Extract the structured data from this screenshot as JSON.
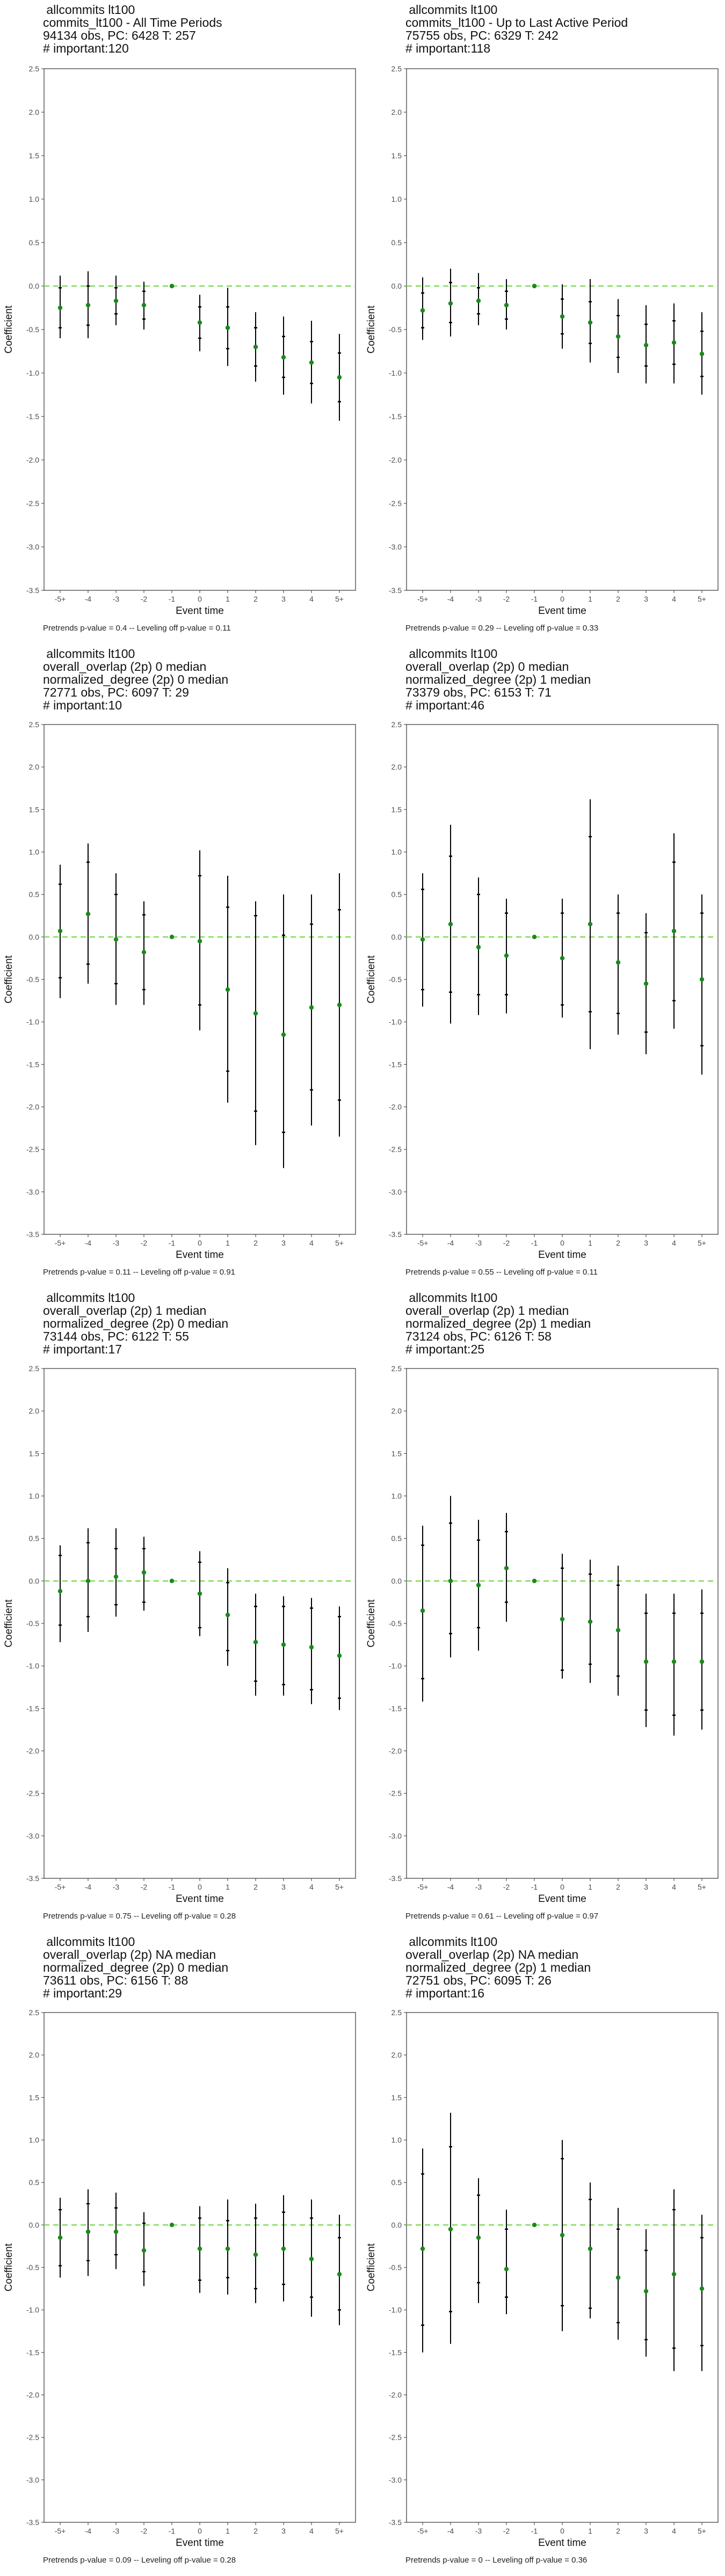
{
  "colors": {
    "dashed_zero": "#7fdc5a",
    "point": "#1a8a1a",
    "ci": "#000000",
    "text": "#333333"
  },
  "chart_data": [
    {
      "type": "scatter",
      "title_lines": [
        "allcommits lt100",
        "commits_lt100 - All Time Periods",
        "94134 obs, PC: 6428 T: 257",
        "# important:120"
      ],
      "xlabel": "Event time",
      "ylabel": "Coefficient",
      "categories": [
        "-5+",
        "-4",
        "-3",
        "-2",
        "-1",
        "0",
        "1",
        "2",
        "3",
        "4",
        "5+"
      ],
      "ylim": [
        -3.5,
        2.5
      ],
      "yticks": [
        "-3.5",
        "-3.0",
        "-2.5",
        "-2.0",
        "-1.5",
        "-1.0",
        "-0.5",
        "0.0",
        "0.5",
        "1.0",
        "1.5",
        "2.0",
        "2.5"
      ],
      "values": [
        -0.25,
        -0.22,
        -0.17,
        -0.22,
        0.0,
        -0.42,
        -0.48,
        -0.7,
        -0.82,
        -0.88,
        -1.05
      ],
      "ci_outer": [
        [
          -0.6,
          0.12
        ],
        [
          -0.6,
          0.17
        ],
        [
          -0.45,
          0.12
        ],
        [
          -0.5,
          0.05
        ],
        [
          0,
          0
        ],
        [
          -0.75,
          -0.1
        ],
        [
          -0.92,
          -0.02
        ],
        [
          -1.1,
          -0.3
        ],
        [
          -1.25,
          -0.35
        ],
        [
          -1.35,
          -0.4
        ],
        [
          -1.55,
          -0.55
        ]
      ],
      "ci_inner": [
        [
          -0.48,
          -0.02
        ],
        [
          -0.45,
          0.0
        ],
        [
          -0.32,
          -0.02
        ],
        [
          -0.38,
          -0.06
        ],
        [
          0,
          0
        ],
        [
          -0.6,
          -0.24
        ],
        [
          -0.72,
          -0.24
        ],
        [
          -0.92,
          -0.48
        ],
        [
          -1.05,
          -0.58
        ],
        [
          -1.12,
          -0.64
        ],
        [
          -1.33,
          -0.77
        ]
      ],
      "grid": false,
      "note": "Pretrends p-value = 0.4 -- Leveling off p-value = 0.11"
    },
    {
      "type": "scatter",
      "title_lines": [
        "allcommits lt100",
        "commits_lt100 - Up to Last Active Period",
        "75755 obs, PC: 6329 T: 242",
        "# important:118"
      ],
      "xlabel": "Event time",
      "ylabel": "Coefficient",
      "categories": [
        "-5+",
        "-4",
        "-3",
        "-2",
        "-1",
        "0",
        "1",
        "2",
        "3",
        "4",
        "5+"
      ],
      "ylim": [
        -3.5,
        2.5
      ],
      "yticks": [
        "-3.5",
        "-3.0",
        "-2.5",
        "-2.0",
        "-1.5",
        "-1.0",
        "-0.5",
        "0.0",
        "0.5",
        "1.0",
        "1.5",
        "2.0",
        "2.5"
      ],
      "values": [
        -0.28,
        -0.2,
        -0.17,
        -0.22,
        0.0,
        -0.35,
        -0.42,
        -0.58,
        -0.68,
        -0.65,
        -0.78
      ],
      "ci_outer": [
        [
          -0.62,
          0.1
        ],
        [
          -0.58,
          0.2
        ],
        [
          -0.45,
          0.15
        ],
        [
          -0.5,
          0.08
        ],
        [
          0,
          0
        ],
        [
          -0.72,
          0.02
        ],
        [
          -0.88,
          0.08
        ],
        [
          -1.0,
          -0.15
        ],
        [
          -1.12,
          -0.22
        ],
        [
          -1.12,
          -0.2
        ],
        [
          -1.25,
          -0.3
        ]
      ],
      "ci_inner": [
        [
          -0.48,
          -0.08
        ],
        [
          -0.42,
          0.04
        ],
        [
          -0.32,
          -0.02
        ],
        [
          -0.38,
          -0.06
        ],
        [
          0,
          0
        ],
        [
          -0.55,
          -0.15
        ],
        [
          -0.66,
          -0.18
        ],
        [
          -0.82,
          -0.34
        ],
        [
          -0.92,
          -0.44
        ],
        [
          -0.9,
          -0.4
        ],
        [
          -1.04,
          -0.52
        ]
      ],
      "grid": false,
      "note": "Pretrends p-value = 0.29 -- Leveling off p-value = 0.33"
    },
    {
      "type": "scatter",
      "title_lines": [
        "allcommits lt100",
        "overall_overlap (2p) 0 median",
        "normalized_degree (2p) 0 median",
        "72771 obs, PC: 6097 T: 29",
        "# important:10"
      ],
      "xlabel": "Event time",
      "ylabel": "Coefficient",
      "categories": [
        "-5+",
        "-4",
        "-3",
        "-2",
        "-1",
        "0",
        "1",
        "2",
        "3",
        "4",
        "5+"
      ],
      "ylim": [
        -3.5,
        2.5
      ],
      "yticks": [
        "-3.5",
        "-3.0",
        "-2.5",
        "-2.0",
        "-1.5",
        "-1.0",
        "-0.5",
        "0.0",
        "0.5",
        "1.0",
        "1.5",
        "2.0",
        "2.5"
      ],
      "values": [
        0.07,
        0.27,
        -0.03,
        -0.18,
        0.0,
        -0.05,
        -0.62,
        -0.9,
        -1.15,
        -0.83,
        -0.8
      ],
      "ci_outer": [
        [
          -0.72,
          0.85
        ],
        [
          -0.55,
          1.1
        ],
        [
          -0.8,
          0.75
        ],
        [
          -0.8,
          0.42
        ],
        [
          0,
          0
        ],
        [
          -1.1,
          1.02
        ],
        [
          -1.95,
          0.72
        ],
        [
          -2.45,
          0.42
        ],
        [
          -2.72,
          0.5
        ],
        [
          -2.22,
          0.5
        ],
        [
          -2.35,
          0.75
        ]
      ],
      "ci_inner": [
        [
          -0.48,
          0.62
        ],
        [
          -0.32,
          0.88
        ],
        [
          -0.55,
          0.5
        ],
        [
          -0.62,
          0.26
        ],
        [
          0,
          0
        ],
        [
          -0.8,
          0.72
        ],
        [
          -1.58,
          0.35
        ],
        [
          -2.05,
          0.25
        ],
        [
          -2.3,
          0.02
        ],
        [
          -1.8,
          0.15
        ],
        [
          -1.92,
          0.32
        ]
      ],
      "grid": false,
      "note": "Pretrends p-value = 0.11 -- Leveling off p-value = 0.91"
    },
    {
      "type": "scatter",
      "title_lines": [
        "allcommits lt100",
        "overall_overlap (2p) 0 median",
        "normalized_degree (2p) 1 median",
        "73379 obs, PC: 6153 T: 71",
        "# important:46"
      ],
      "xlabel": "Event time",
      "ylabel": "Coefficient",
      "categories": [
        "-5+",
        "-4",
        "-3",
        "-2",
        "-1",
        "0",
        "1",
        "2",
        "3",
        "4",
        "5+"
      ],
      "ylim": [
        -3.5,
        2.5
      ],
      "yticks": [
        "-3.5",
        "-3.0",
        "-2.5",
        "-2.0",
        "-1.5",
        "-1.0",
        "-0.5",
        "0.0",
        "0.5",
        "1.0",
        "1.5",
        "2.0",
        "2.5"
      ],
      "values": [
        -0.03,
        0.15,
        -0.12,
        -0.22,
        0.0,
        -0.25,
        0.15,
        -0.3,
        -0.55,
        0.07,
        -0.5
      ],
      "ci_outer": [
        [
          -0.82,
          0.75
        ],
        [
          -1.02,
          1.32
        ],
        [
          -0.92,
          0.7
        ],
        [
          -0.9,
          0.45
        ],
        [
          0,
          0
        ],
        [
          -0.95,
          0.45
        ],
        [
          -1.32,
          1.62
        ],
        [
          -1.15,
          0.5
        ],
        [
          -1.38,
          0.28
        ],
        [
          -1.08,
          1.22
        ],
        [
          -1.62,
          0.5
        ]
      ],
      "ci_inner": [
        [
          -0.62,
          0.56
        ],
        [
          -0.65,
          0.95
        ],
        [
          -0.68,
          0.5
        ],
        [
          -0.68,
          0.28
        ],
        [
          0,
          0
        ],
        [
          -0.8,
          0.28
        ],
        [
          -0.88,
          1.18
        ],
        [
          -0.9,
          0.28
        ],
        [
          -1.12,
          0.05
        ],
        [
          -0.75,
          0.88
        ],
        [
          -1.28,
          0.28
        ]
      ],
      "grid": false,
      "note": "Pretrends p-value = 0.55 -- Leveling off p-value = 0.11"
    },
    {
      "type": "scatter",
      "title_lines": [
        "allcommits lt100",
        "overall_overlap (2p) 1 median",
        "normalized_degree (2p) 0 median",
        "73144 obs, PC: 6122 T: 55",
        "# important:17"
      ],
      "xlabel": "Event time",
      "ylabel": "Coefficient",
      "categories": [
        "-5+",
        "-4",
        "-3",
        "-2",
        "-1",
        "0",
        "1",
        "2",
        "3",
        "4",
        "5+"
      ],
      "ylim": [
        -3.5,
        2.5
      ],
      "yticks": [
        "-3.5",
        "-3.0",
        "-2.5",
        "-2.0",
        "-1.5",
        "-1.0",
        "-0.5",
        "0.0",
        "0.5",
        "1.0",
        "1.5",
        "2.0",
        "2.5"
      ],
      "values": [
        -0.12,
        0.0,
        0.05,
        0.1,
        0.0,
        -0.15,
        -0.4,
        -0.72,
        -0.75,
        -0.78,
        -0.88
      ],
      "ci_outer": [
        [
          -0.72,
          0.42
        ],
        [
          -0.6,
          0.62
        ],
        [
          -0.42,
          0.62
        ],
        [
          -0.35,
          0.52
        ],
        [
          0,
          0
        ],
        [
          -0.65,
          0.35
        ],
        [
          -1.0,
          0.15
        ],
        [
          -1.35,
          -0.15
        ],
        [
          -1.35,
          -0.18
        ],
        [
          -1.45,
          -0.2
        ],
        [
          -1.52,
          -0.3
        ]
      ],
      "ci_inner": [
        [
          -0.52,
          0.3
        ],
        [
          -0.42,
          0.45
        ],
        [
          -0.28,
          0.38
        ],
        [
          -0.25,
          0.38
        ],
        [
          0,
          0
        ],
        [
          -0.55,
          0.22
        ],
        [
          -0.82,
          -0.02
        ],
        [
          -1.18,
          -0.3
        ],
        [
          -1.22,
          -0.3
        ],
        [
          -1.28,
          -0.32
        ],
        [
          -1.38,
          -0.42
        ]
      ],
      "grid": false,
      "note": "Pretrends p-value = 0.75 -- Leveling off p-value = 0.28"
    },
    {
      "type": "scatter",
      "title_lines": [
        "allcommits lt100",
        "overall_overlap (2p) 1 median",
        "normalized_degree (2p) 1 median",
        "73124 obs, PC: 6126 T: 58",
        "# important:25"
      ],
      "xlabel": "Event time",
      "ylabel": "Coefficient",
      "categories": [
        "-5+",
        "-4",
        "-3",
        "-2",
        "-1",
        "0",
        "1",
        "2",
        "3",
        "4",
        "5+"
      ],
      "ylim": [
        -3.5,
        2.5
      ],
      "yticks": [
        "-3.5",
        "-3.0",
        "-2.5",
        "-2.0",
        "-1.5",
        "-1.0",
        "-0.5",
        "0.0",
        "0.5",
        "1.0",
        "1.5",
        "2.0",
        "2.5"
      ],
      "values": [
        -0.35,
        0.0,
        -0.05,
        0.15,
        0.0,
        -0.45,
        -0.48,
        -0.58,
        -0.95,
        -0.95,
        -0.95
      ],
      "ci_outer": [
        [
          -1.42,
          0.65
        ],
        [
          -0.9,
          1.0
        ],
        [
          -0.82,
          0.72
        ],
        [
          -0.48,
          0.8
        ],
        [
          0,
          0
        ],
        [
          -1.15,
          0.32
        ],
        [
          -1.2,
          0.25
        ],
        [
          -1.35,
          0.18
        ],
        [
          -1.72,
          -0.15
        ],
        [
          -1.82,
          -0.15
        ],
        [
          -1.75,
          -0.1
        ]
      ],
      "ci_inner": [
        [
          -1.15,
          0.42
        ],
        [
          -0.62,
          0.68
        ],
        [
          -0.55,
          0.48
        ],
        [
          -0.25,
          0.58
        ],
        [
          0,
          0
        ],
        [
          -1.05,
          0.15
        ],
        [
          -0.98,
          0.08
        ],
        [
          -1.12,
          -0.05
        ],
        [
          -1.52,
          -0.38
        ],
        [
          -1.58,
          -0.38
        ],
        [
          -1.52,
          -0.38
        ]
      ],
      "grid": false,
      "note": "Pretrends p-value = 0.61 -- Leveling off p-value = 0.97"
    },
    {
      "type": "scatter",
      "title_lines": [
        "allcommits lt100",
        "overall_overlap (2p) NA median",
        "normalized_degree (2p) 0 median",
        "73611 obs, PC: 6156 T: 88",
        "# important:29"
      ],
      "xlabel": "Event time",
      "ylabel": "Coefficient",
      "categories": [
        "-5+",
        "-4",
        "-3",
        "-2",
        "-1",
        "0",
        "1",
        "2",
        "3",
        "4",
        "5+"
      ],
      "ylim": [
        -3.5,
        2.5
      ],
      "yticks": [
        "-3.5",
        "-3.0",
        "-2.5",
        "-2.0",
        "-1.5",
        "-1.0",
        "-0.5",
        "0.0",
        "0.5",
        "1.0",
        "1.5",
        "2.0",
        "2.5"
      ],
      "values": [
        -0.15,
        -0.08,
        -0.08,
        -0.3,
        0.0,
        -0.28,
        -0.28,
        -0.35,
        -0.28,
        -0.4,
        -0.58
      ],
      "ci_outer": [
        [
          -0.62,
          0.32
        ],
        [
          -0.6,
          0.42
        ],
        [
          -0.52,
          0.38
        ],
        [
          -0.72,
          0.15
        ],
        [
          0,
          0
        ],
        [
          -0.8,
          0.22
        ],
        [
          -0.82,
          0.3
        ],
        [
          -0.92,
          0.25
        ],
        [
          -0.9,
          0.35
        ],
        [
          -1.08,
          0.3
        ],
        [
          -1.18,
          0.12
        ]
      ],
      "ci_inner": [
        [
          -0.48,
          0.18
        ],
        [
          -0.42,
          0.25
        ],
        [
          -0.35,
          0.2
        ],
        [
          -0.55,
          0.02
        ],
        [
          0,
          0
        ],
        [
          -0.65,
          0.08
        ],
        [
          -0.62,
          0.05
        ],
        [
          -0.75,
          0.08
        ],
        [
          -0.7,
          0.15
        ],
        [
          -0.85,
          0.08
        ],
        [
          -1.0,
          -0.15
        ]
      ],
      "grid": false,
      "note": "Pretrends p-value = 0.09 -- Leveling off p-value = 0.28"
    },
    {
      "type": "scatter",
      "title_lines": [
        "allcommits lt100",
        "overall_overlap (2p) NA median",
        "normalized_degree (2p) 1 median",
        "72751 obs, PC: 6095 T: 26",
        "# important:16"
      ],
      "xlabel": "Event time",
      "ylabel": "Coefficient",
      "categories": [
        "-5+",
        "-4",
        "-3",
        "-2",
        "-1",
        "0",
        "1",
        "2",
        "3",
        "4",
        "5+"
      ],
      "ylim": [
        -3.5,
        2.5
      ],
      "yticks": [
        "-3.5",
        "-3.0",
        "-2.5",
        "-2.0",
        "-1.5",
        "-1.0",
        "-0.5",
        "0.0",
        "0.5",
        "1.0",
        "1.5",
        "2.0",
        "2.5"
      ],
      "values": [
        -0.28,
        -0.05,
        -0.15,
        -0.52,
        0.0,
        -0.12,
        -0.28,
        -0.62,
        -0.78,
        -0.58,
        -0.75
      ],
      "ci_outer": [
        [
          -1.5,
          0.9
        ],
        [
          -1.4,
          1.32
        ],
        [
          -0.92,
          0.55
        ],
        [
          -1.05,
          0.18
        ],
        [
          0,
          0
        ],
        [
          -1.25,
          1.0
        ],
        [
          -1.1,
          0.5
        ],
        [
          -1.35,
          0.2
        ],
        [
          -1.55,
          -0.05
        ],
        [
          -1.72,
          0.42
        ],
        [
          -1.72,
          0.12
        ]
      ],
      "ci_inner": [
        [
          -1.18,
          0.6
        ],
        [
          -1.02,
          0.92
        ],
        [
          -0.68,
          0.35
        ],
        [
          -0.85,
          -0.05
        ],
        [
          0,
          0
        ],
        [
          -0.95,
          0.78
        ],
        [
          -0.98,
          0.3
        ],
        [
          -1.15,
          -0.05
        ],
        [
          -1.35,
          -0.3
        ],
        [
          -1.45,
          0.18
        ],
        [
          -1.42,
          -0.15
        ]
      ],
      "grid": false,
      "note": "Pretrends p-value = 0 -- Leveling off p-value = 0.36"
    }
  ]
}
